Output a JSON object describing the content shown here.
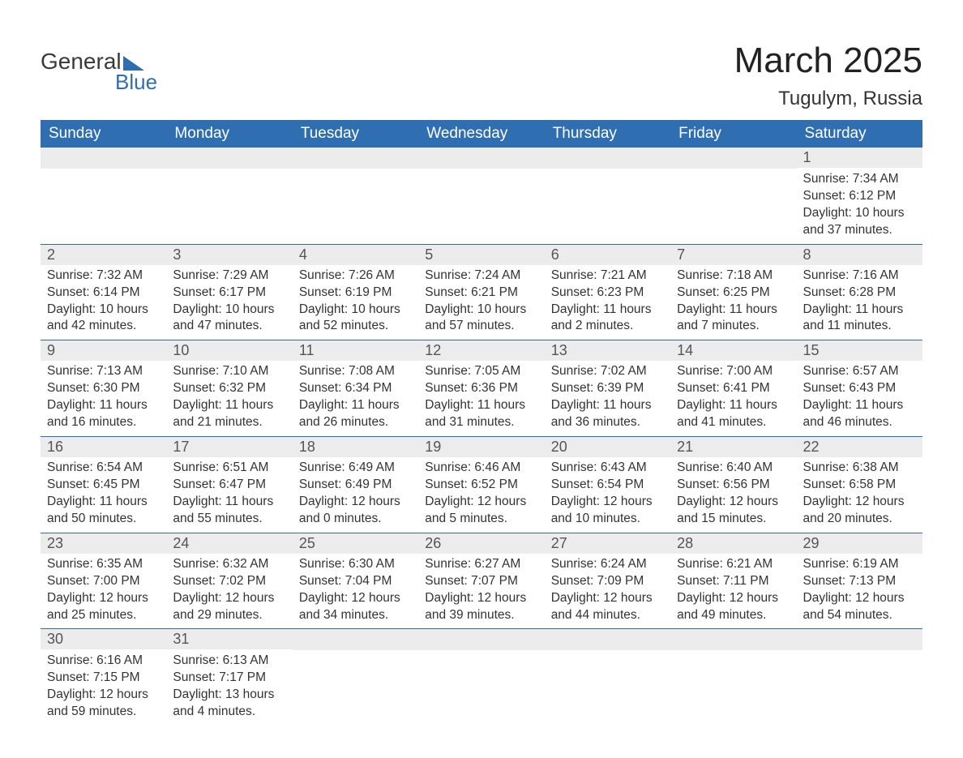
{
  "logo": {
    "text1": "General",
    "text2": "Blue"
  },
  "title": {
    "month": "March 2025",
    "location": "Tugulym, Russia"
  },
  "colors": {
    "header_bg": "#2f6eb0",
    "header_text": "#ffffff",
    "daynum_bg": "#ececec",
    "daynum_text": "#555555",
    "body_text": "#333333",
    "row_divider": "#2f6eb0",
    "page_bg": "#ffffff"
  },
  "day_headers": [
    "Sunday",
    "Monday",
    "Tuesday",
    "Wednesday",
    "Thursday",
    "Friday",
    "Saturday"
  ],
  "weeks": [
    [
      null,
      null,
      null,
      null,
      null,
      null,
      {
        "n": "1",
        "sr": "Sunrise: 7:34 AM",
        "ss": "Sunset: 6:12 PM",
        "d1": "Daylight: 10 hours",
        "d2": "and 37 minutes."
      }
    ],
    [
      {
        "n": "2",
        "sr": "Sunrise: 7:32 AM",
        "ss": "Sunset: 6:14 PM",
        "d1": "Daylight: 10 hours",
        "d2": "and 42 minutes."
      },
      {
        "n": "3",
        "sr": "Sunrise: 7:29 AM",
        "ss": "Sunset: 6:17 PM",
        "d1": "Daylight: 10 hours",
        "d2": "and 47 minutes."
      },
      {
        "n": "4",
        "sr": "Sunrise: 7:26 AM",
        "ss": "Sunset: 6:19 PM",
        "d1": "Daylight: 10 hours",
        "d2": "and 52 minutes."
      },
      {
        "n": "5",
        "sr": "Sunrise: 7:24 AM",
        "ss": "Sunset: 6:21 PM",
        "d1": "Daylight: 10 hours",
        "d2": "and 57 minutes."
      },
      {
        "n": "6",
        "sr": "Sunrise: 7:21 AM",
        "ss": "Sunset: 6:23 PM",
        "d1": "Daylight: 11 hours",
        "d2": "and 2 minutes."
      },
      {
        "n": "7",
        "sr": "Sunrise: 7:18 AM",
        "ss": "Sunset: 6:25 PM",
        "d1": "Daylight: 11 hours",
        "d2": "and 7 minutes."
      },
      {
        "n": "8",
        "sr": "Sunrise: 7:16 AM",
        "ss": "Sunset: 6:28 PM",
        "d1": "Daylight: 11 hours",
        "d2": "and 11 minutes."
      }
    ],
    [
      {
        "n": "9",
        "sr": "Sunrise: 7:13 AM",
        "ss": "Sunset: 6:30 PM",
        "d1": "Daylight: 11 hours",
        "d2": "and 16 minutes."
      },
      {
        "n": "10",
        "sr": "Sunrise: 7:10 AM",
        "ss": "Sunset: 6:32 PM",
        "d1": "Daylight: 11 hours",
        "d2": "and 21 minutes."
      },
      {
        "n": "11",
        "sr": "Sunrise: 7:08 AM",
        "ss": "Sunset: 6:34 PM",
        "d1": "Daylight: 11 hours",
        "d2": "and 26 minutes."
      },
      {
        "n": "12",
        "sr": "Sunrise: 7:05 AM",
        "ss": "Sunset: 6:36 PM",
        "d1": "Daylight: 11 hours",
        "d2": "and 31 minutes."
      },
      {
        "n": "13",
        "sr": "Sunrise: 7:02 AM",
        "ss": "Sunset: 6:39 PM",
        "d1": "Daylight: 11 hours",
        "d2": "and 36 minutes."
      },
      {
        "n": "14",
        "sr": "Sunrise: 7:00 AM",
        "ss": "Sunset: 6:41 PM",
        "d1": "Daylight: 11 hours",
        "d2": "and 41 minutes."
      },
      {
        "n": "15",
        "sr": "Sunrise: 6:57 AM",
        "ss": "Sunset: 6:43 PM",
        "d1": "Daylight: 11 hours",
        "d2": "and 46 minutes."
      }
    ],
    [
      {
        "n": "16",
        "sr": "Sunrise: 6:54 AM",
        "ss": "Sunset: 6:45 PM",
        "d1": "Daylight: 11 hours",
        "d2": "and 50 minutes."
      },
      {
        "n": "17",
        "sr": "Sunrise: 6:51 AM",
        "ss": "Sunset: 6:47 PM",
        "d1": "Daylight: 11 hours",
        "d2": "and 55 minutes."
      },
      {
        "n": "18",
        "sr": "Sunrise: 6:49 AM",
        "ss": "Sunset: 6:49 PM",
        "d1": "Daylight: 12 hours",
        "d2": "and 0 minutes."
      },
      {
        "n": "19",
        "sr": "Sunrise: 6:46 AM",
        "ss": "Sunset: 6:52 PM",
        "d1": "Daylight: 12 hours",
        "d2": "and 5 minutes."
      },
      {
        "n": "20",
        "sr": "Sunrise: 6:43 AM",
        "ss": "Sunset: 6:54 PM",
        "d1": "Daylight: 12 hours",
        "d2": "and 10 minutes."
      },
      {
        "n": "21",
        "sr": "Sunrise: 6:40 AM",
        "ss": "Sunset: 6:56 PM",
        "d1": "Daylight: 12 hours",
        "d2": "and 15 minutes."
      },
      {
        "n": "22",
        "sr": "Sunrise: 6:38 AM",
        "ss": "Sunset: 6:58 PM",
        "d1": "Daylight: 12 hours",
        "d2": "and 20 minutes."
      }
    ],
    [
      {
        "n": "23",
        "sr": "Sunrise: 6:35 AM",
        "ss": "Sunset: 7:00 PM",
        "d1": "Daylight: 12 hours",
        "d2": "and 25 minutes."
      },
      {
        "n": "24",
        "sr": "Sunrise: 6:32 AM",
        "ss": "Sunset: 7:02 PM",
        "d1": "Daylight: 12 hours",
        "d2": "and 29 minutes."
      },
      {
        "n": "25",
        "sr": "Sunrise: 6:30 AM",
        "ss": "Sunset: 7:04 PM",
        "d1": "Daylight: 12 hours",
        "d2": "and 34 minutes."
      },
      {
        "n": "26",
        "sr": "Sunrise: 6:27 AM",
        "ss": "Sunset: 7:07 PM",
        "d1": "Daylight: 12 hours",
        "d2": "and 39 minutes."
      },
      {
        "n": "27",
        "sr": "Sunrise: 6:24 AM",
        "ss": "Sunset: 7:09 PM",
        "d1": "Daylight: 12 hours",
        "d2": "and 44 minutes."
      },
      {
        "n": "28",
        "sr": "Sunrise: 6:21 AM",
        "ss": "Sunset: 7:11 PM",
        "d1": "Daylight: 12 hours",
        "d2": "and 49 minutes."
      },
      {
        "n": "29",
        "sr": "Sunrise: 6:19 AM",
        "ss": "Sunset: 7:13 PM",
        "d1": "Daylight: 12 hours",
        "d2": "and 54 minutes."
      }
    ],
    [
      {
        "n": "30",
        "sr": "Sunrise: 6:16 AM",
        "ss": "Sunset: 7:15 PM",
        "d1": "Daylight: 12 hours",
        "d2": "and 59 minutes."
      },
      {
        "n": "31",
        "sr": "Sunrise: 6:13 AM",
        "ss": "Sunset: 7:17 PM",
        "d1": "Daylight: 13 hours",
        "d2": "and 4 minutes."
      },
      null,
      null,
      null,
      null,
      null
    ]
  ]
}
